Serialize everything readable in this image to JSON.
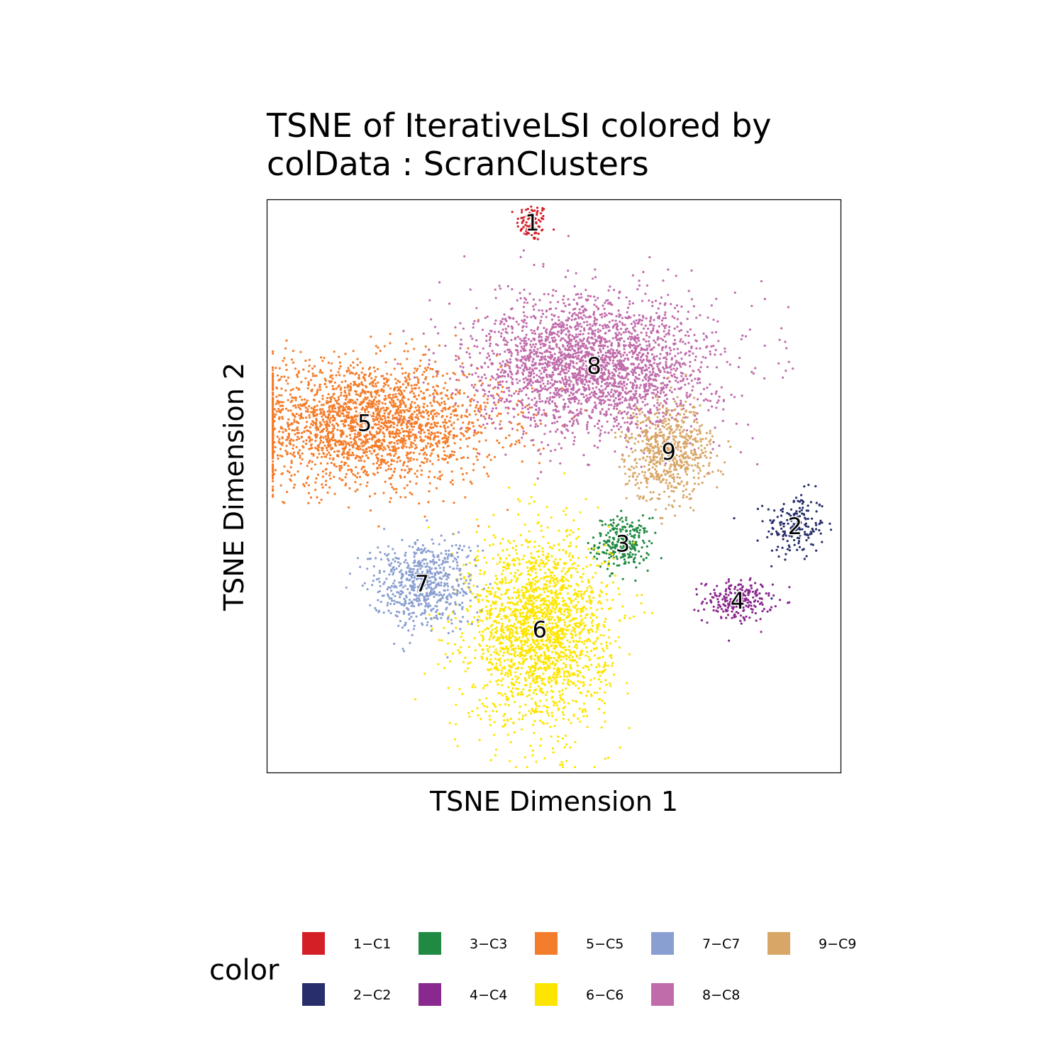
{
  "chart_data": {
    "type": "scatter",
    "title_lines": [
      "TSNE of IterativeLSI  colored by",
      "colData :  ScranClusters"
    ],
    "xlabel": "TSNE Dimension 1",
    "ylabel": "TSNE Dimension 2",
    "axis_ticks_shown": false,
    "grid": false,
    "legend": {
      "title": "color",
      "placement": "bottom",
      "entries": [
        {
          "label": "1−C1",
          "color": "#D51F26"
        },
        {
          "label": "2−C2",
          "color": "#272E6A"
        },
        {
          "label": "3−C3",
          "color": "#208A42"
        },
        {
          "label": "4−C4",
          "color": "#89288F"
        },
        {
          "label": "5−C5",
          "color": "#F47D2B"
        },
        {
          "label": "6−C6",
          "color": "#FEE500"
        },
        {
          "label": "7−C7",
          "color": "#8A9FD1"
        },
        {
          "label": "8−C8",
          "color": "#C06CAB"
        },
        {
          "label": "9−C9",
          "color": "#D8A767"
        }
      ]
    },
    "clusters": [
      {
        "label": "1",
        "color": "#D51F26",
        "center": [
          -3.8,
          46
        ],
        "spread": [
          1.8,
          2.2
        ],
        "n": 90
      },
      {
        "label": "2",
        "color": "#272E6A",
        "center": [
          42,
          -7
        ],
        "spread": [
          3.5,
          4
        ],
        "n": 180
      },
      {
        "label": "3",
        "color": "#208A42",
        "center": [
          12,
          -10
        ],
        "spread": [
          3.2,
          3
        ],
        "n": 260
      },
      {
        "label": "4",
        "color": "#89288F",
        "center": [
          32,
          -20
        ],
        "spread": [
          4,
          2.4
        ],
        "n": 220
      },
      {
        "label": "5",
        "color": "#F47D2B",
        "center": [
          -33,
          11
        ],
        "spread": [
          16,
          7
        ],
        "n": 2400
      },
      {
        "label": "6",
        "color": "#FEE500",
        "center": [
          -2.5,
          -25
        ],
        "spread": [
          8,
          11
        ],
        "n": 2100
      },
      {
        "label": "7",
        "color": "#8A9FD1",
        "center": [
          -23,
          -17
        ],
        "spread": [
          6,
          5
        ],
        "n": 650
      },
      {
        "label": "8",
        "color": "#C06CAB",
        "center": [
          7,
          21
        ],
        "spread": [
          14,
          8
        ],
        "n": 2600
      },
      {
        "label": "9",
        "color": "#D8A767",
        "center": [
          20,
          6
        ],
        "spread": [
          5,
          5.5
        ],
        "n": 650
      }
    ]
  }
}
